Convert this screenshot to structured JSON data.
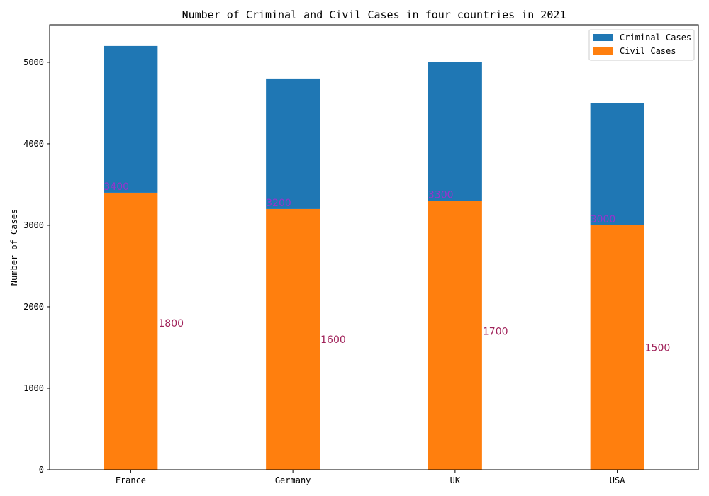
{
  "chart_data": {
    "type": "bar",
    "title": "Number of Criminal and Civil Cases in four countries in 2021",
    "ylabel": "Number of Cases",
    "xlabel": "",
    "categories": [
      "France",
      "Germany",
      "UK",
      "USA"
    ],
    "ylim": [
      0,
      5460
    ],
    "yticks": [
      0,
      1000,
      2000,
      3000,
      4000,
      5000
    ],
    "grid": false,
    "legend_position": "top-right",
    "stacked": true,
    "series": [
      {
        "name": "Civil Cases",
        "values": [
          3400,
          3200,
          3300,
          3000
        ],
        "color": "#ff7f0e"
      },
      {
        "name": "Criminal Cases",
        "values": [
          1800,
          1600,
          1700,
          1500
        ],
        "color": "#1f77b4"
      }
    ],
    "legend": [
      "Criminal Cases",
      "Civil Cases"
    ],
    "data_labels": {
      "civil": [
        "3400",
        "3200",
        "3300",
        "3000"
      ],
      "criminal": [
        "1800",
        "1600",
        "1700",
        "1500"
      ],
      "civil_color": "#9932cc",
      "criminal_color": "#a0225a"
    }
  }
}
